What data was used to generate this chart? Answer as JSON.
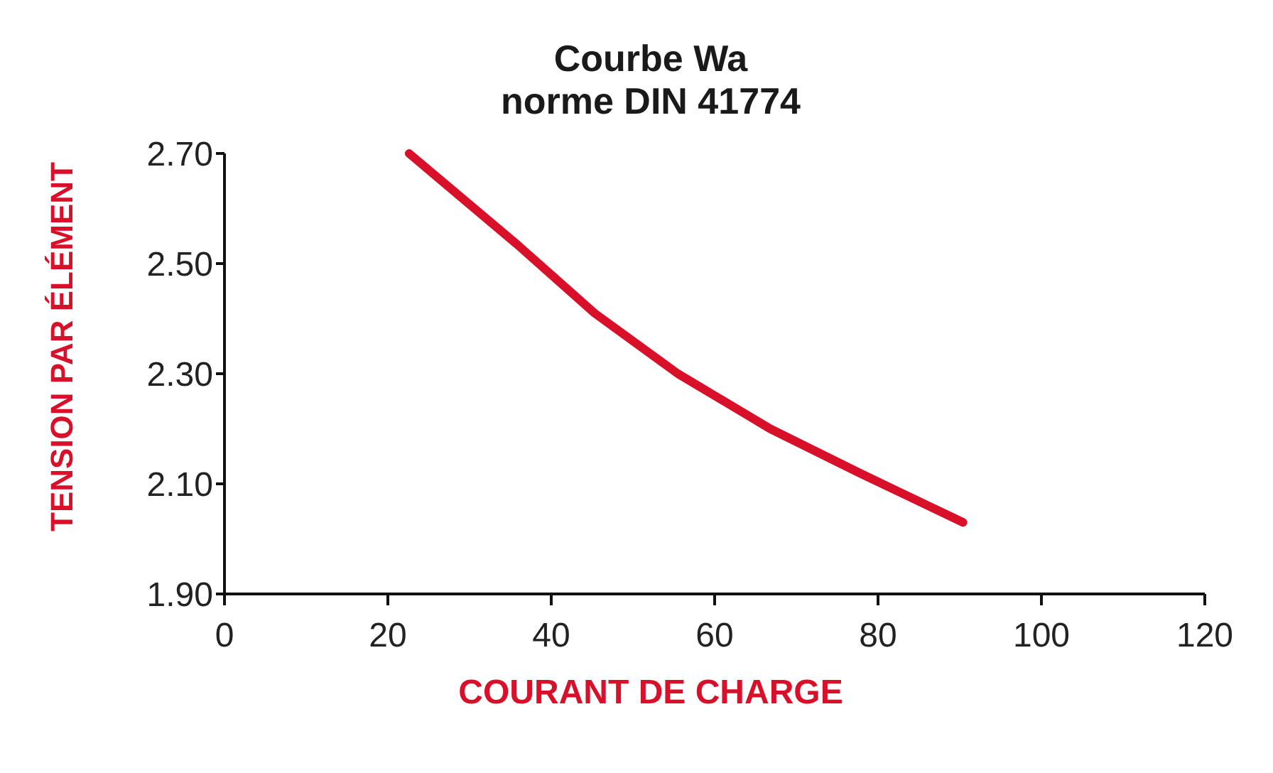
{
  "chart_data": {
    "type": "line",
    "title": "Courbe Wa\nnorme DIN 41774",
    "xlabel": "COURANT DE CHARGE",
    "ylabel": "TENSION PAR ÉLÉMENT",
    "x": [
      22.6,
      35.8,
      45.3,
      55.5,
      66.8,
      77.7,
      90.4
    ],
    "series": [
      {
        "color": "#d8102a",
        "values": [
          2.7,
          2.535,
          2.41,
          2.3,
          2.2,
          2.12,
          2.03
        ]
      }
    ],
    "xlim": [
      0,
      120
    ],
    "xticks": [
      0,
      20,
      40,
      60,
      80,
      100,
      120
    ],
    "ylim": [
      1.9,
      2.7
    ],
    "yticks": [
      {
        "value": 1.9,
        "label": "1.90"
      },
      {
        "value": 2.1,
        "label": "2.10"
      },
      {
        "value": 2.3,
        "label": "2.30"
      },
      {
        "value": 2.5,
        "label": "2.50"
      },
      {
        "value": 2.7,
        "label": "2.70"
      }
    ],
    "grid": false,
    "legend": false,
    "marker": "none",
    "line_style": "solid"
  }
}
